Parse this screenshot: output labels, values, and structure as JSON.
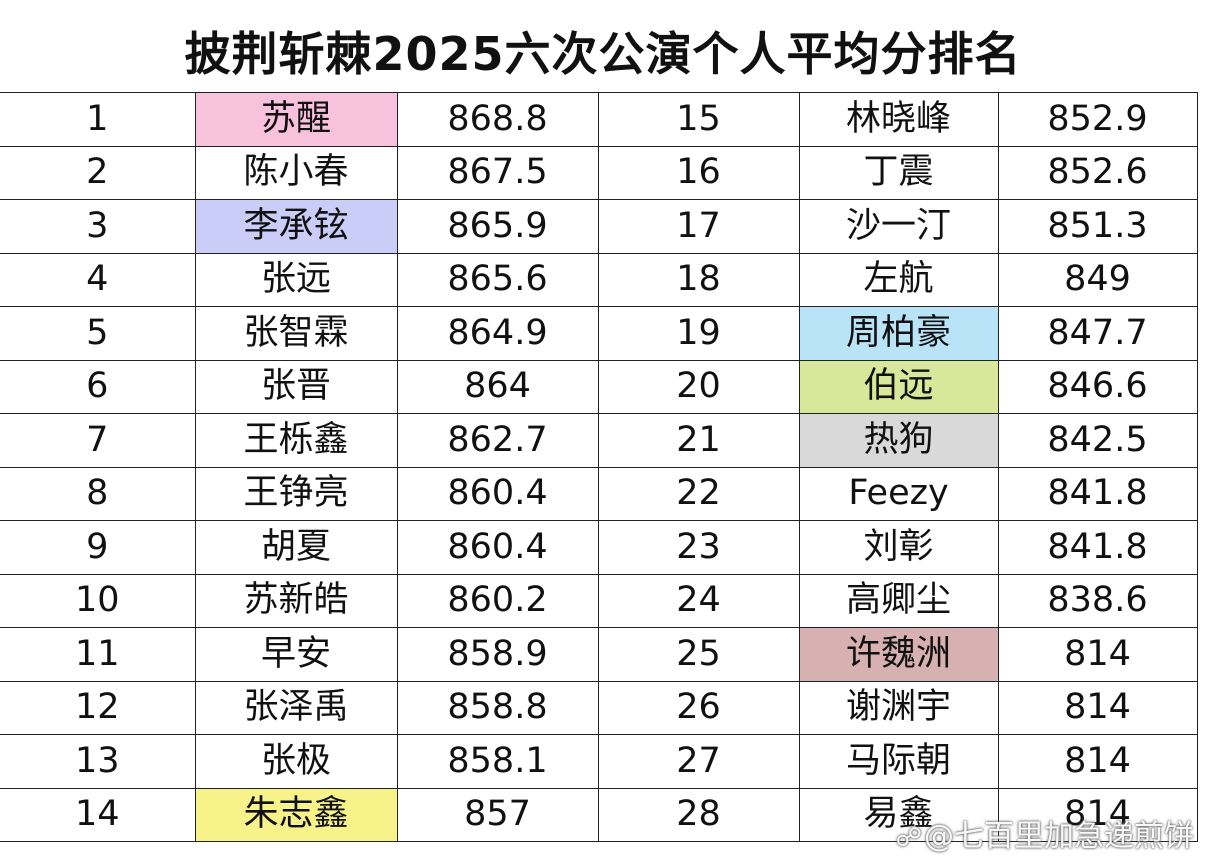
{
  "title": "披荆斩棘2025六次公演个人平均分排名",
  "rows": [
    {
      "left": {
        "rank": "1",
        "name": "苏醒",
        "score": "868.8",
        "highlight": "#f9c2dc"
      },
      "right": {
        "rank": "15",
        "name": "林晓峰",
        "score": "852.9",
        "highlight": ""
      }
    },
    {
      "left": {
        "rank": "2",
        "name": "陈小春",
        "score": "867.5",
        "highlight": ""
      },
      "right": {
        "rank": "16",
        "name": "丁震",
        "score": "852.6",
        "highlight": ""
      }
    },
    {
      "left": {
        "rank": "3",
        "name": "李承铉",
        "score": "865.9",
        "highlight": "#c9cdf8"
      },
      "right": {
        "rank": "17",
        "name": "沙一汀",
        "score": "851.3",
        "highlight": ""
      }
    },
    {
      "left": {
        "rank": "4",
        "name": "张远",
        "score": "865.6",
        "highlight": ""
      },
      "right": {
        "rank": "18",
        "name": "左航",
        "score": "849",
        "highlight": ""
      }
    },
    {
      "left": {
        "rank": "5",
        "name": "张智霖",
        "score": "864.9",
        "highlight": ""
      },
      "right": {
        "rank": "19",
        "name": "周柏豪",
        "score": "847.7",
        "highlight": "#b9e4f8"
      }
    },
    {
      "left": {
        "rank": "6",
        "name": "张晋",
        "score": "864",
        "highlight": ""
      },
      "right": {
        "rank": "20",
        "name": "伯远",
        "score": "846.6",
        "highlight": "#d9e79a"
      }
    },
    {
      "left": {
        "rank": "7",
        "name": "王栎鑫",
        "score": "862.7",
        "highlight": ""
      },
      "right": {
        "rank": "21",
        "name": "热狗",
        "score": "842.5",
        "highlight": "#d9d9d9"
      }
    },
    {
      "left": {
        "rank": "8",
        "name": "王铮亮",
        "score": "860.4",
        "highlight": ""
      },
      "right": {
        "rank": "22",
        "name": "Feezy",
        "score": "841.8",
        "highlight": ""
      }
    },
    {
      "left": {
        "rank": "9",
        "name": "胡夏",
        "score": "860.4",
        "highlight": ""
      },
      "right": {
        "rank": "23",
        "name": "刘彰",
        "score": "841.8",
        "highlight": ""
      }
    },
    {
      "left": {
        "rank": "10",
        "name": "苏新皓",
        "score": "860.2",
        "highlight": ""
      },
      "right": {
        "rank": "24",
        "name": "高卿尘",
        "score": "838.6",
        "highlight": ""
      }
    },
    {
      "left": {
        "rank": "11",
        "name": "早安",
        "score": "858.9",
        "highlight": ""
      },
      "right": {
        "rank": "25",
        "name": "许魏洲",
        "score": "814",
        "highlight": "#d7b1b1"
      }
    },
    {
      "left": {
        "rank": "12",
        "name": "张泽禹",
        "score": "858.8",
        "highlight": ""
      },
      "right": {
        "rank": "26",
        "name": "谢渊宇",
        "score": "814",
        "highlight": ""
      }
    },
    {
      "left": {
        "rank": "13",
        "name": "张极",
        "score": "858.1",
        "highlight": ""
      },
      "right": {
        "rank": "27",
        "name": "马际朝",
        "score": "814",
        "highlight": ""
      }
    },
    {
      "left": {
        "rank": "14",
        "name": "朱志鑫",
        "score": "857",
        "highlight": "#f7f28a"
      },
      "right": {
        "rank": "28",
        "name": "易鑫",
        "score": "814",
        "highlight": ""
      }
    }
  ],
  "watermark": {
    "icon": "weibo-icon",
    "text": "@七百里加急递煎饼"
  }
}
